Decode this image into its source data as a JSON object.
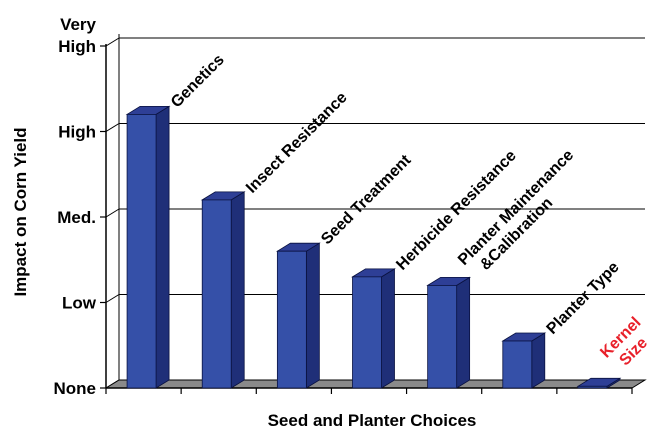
{
  "chart_data": {
    "type": "bar",
    "title": "",
    "xlabel": "Seed and Planter Choices",
    "ylabel": "Impact on Corn Yield",
    "y_ticks": [
      {
        "value": 0,
        "label": "None"
      },
      {
        "value": 1,
        "label": "Low"
      },
      {
        "value": 2,
        "label": "Med."
      },
      {
        "value": 3,
        "label": "High"
      },
      {
        "value": 4,
        "label": [
          "Very",
          "High"
        ]
      }
    ],
    "ylim": [
      0,
      4
    ],
    "grid": true,
    "three_d": true,
    "categories": [
      [
        "Genetics"
      ],
      [
        "Insect Resistance"
      ],
      [
        "Seed Treatment"
      ],
      [
        "Herbicide Resistance"
      ],
      [
        "Planter Maintenance",
        "&Calibration"
      ],
      [
        "Planter Type"
      ],
      [
        "Kernel",
        "Size"
      ]
    ],
    "values": [
      3.2,
      2.2,
      1.6,
      1.3,
      1.2,
      0.55,
      0.02
    ],
    "label_colors": [
      "#000000",
      "#000000",
      "#000000",
      "#000000",
      "#000000",
      "#000000",
      "#e8202a"
    ],
    "colors": {
      "bar_front": "#3550a8",
      "bar_side": "#1f2f78",
      "bar_top": "#2e3f96",
      "bar_outline": "#0a1240",
      "floor": "#8a8a8a",
      "grid": "#000000"
    }
  }
}
